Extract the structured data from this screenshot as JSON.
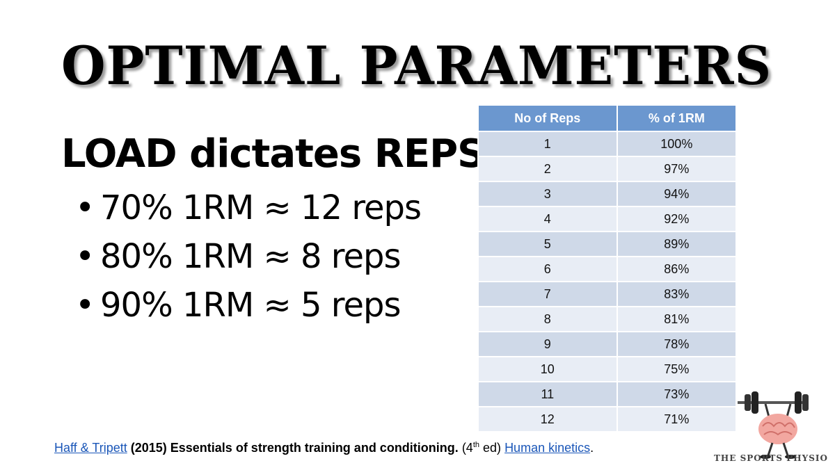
{
  "slide": {
    "title": "OPTIMAL PARAMETERS",
    "heading": "LOAD dictates REPS",
    "bullets": [
      "70% 1RM ≈ 12 reps",
      "80% 1RM ≈ 8 reps",
      "90% 1RM ≈ 5 reps"
    ]
  },
  "table": {
    "headers": [
      "No of Reps",
      "% of 1RM"
    ],
    "rows": [
      [
        "1",
        "100%"
      ],
      [
        "2",
        "97%"
      ],
      [
        "3",
        "94%"
      ],
      [
        "4",
        "92%"
      ],
      [
        "5",
        "89%"
      ],
      [
        "6",
        "86%"
      ],
      [
        "7",
        "83%"
      ],
      [
        "8",
        "81%"
      ],
      [
        "9",
        "78%"
      ],
      [
        "10",
        "75%"
      ],
      [
        "11",
        "73%"
      ],
      [
        "12",
        "71%"
      ]
    ]
  },
  "citation": {
    "authors": "Haff & Tripett",
    "year_title": "(2015) Essentials of strength training and conditioning.",
    "edition_pre": "(4",
    "edition_sup": "th",
    "edition_post": " ed)",
    "publisher": "Human kinetics",
    "end": "."
  },
  "logo": {
    "text": "THE SPORTS PHYSIO",
    "icon": "brain-barbell-icon"
  },
  "colors": {
    "header_blue": "#6b97cf",
    "row_dark": "#cfd9e8",
    "row_light": "#e8edf5",
    "link": "#1a56b8"
  }
}
